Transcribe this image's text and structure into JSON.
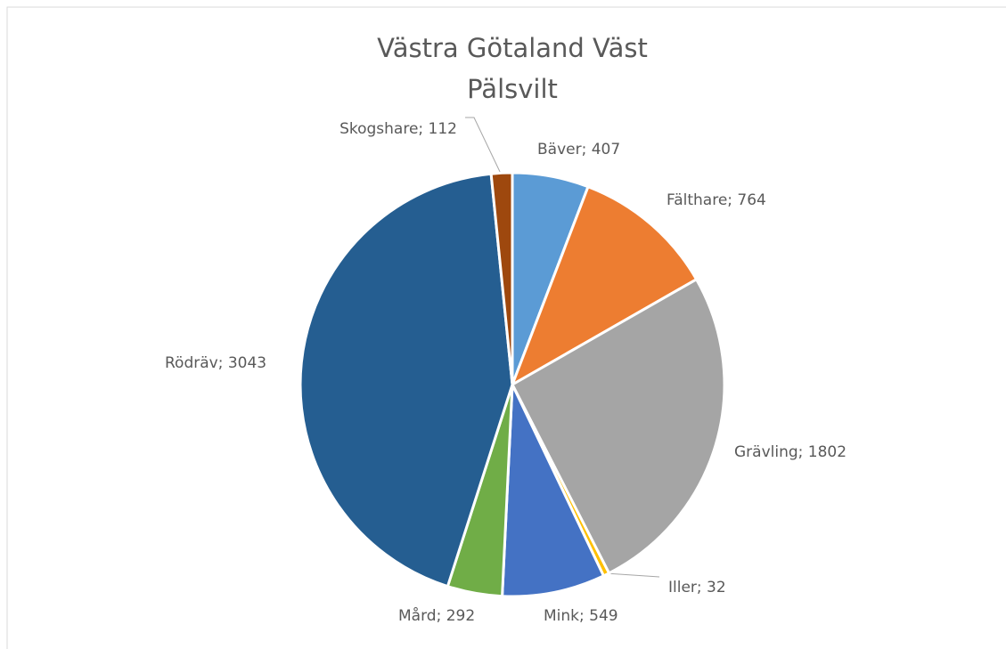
{
  "chart_data": {
    "type": "pie",
    "title": [
      "Västra Götaland Väst",
      "Pälsvilt"
    ],
    "categories": [
      "Bäver",
      "Fälthare",
      "Grävling",
      "Iller",
      "Mink",
      "Mård",
      "Rödräv",
      "Skogshare"
    ],
    "values": [
      407,
      764,
      1802,
      32,
      549,
      292,
      3043,
      112
    ],
    "value_labels": [
      "Bäver; 407",
      "Fälthare; 764",
      "Grävling; 1802",
      "Iller; 32",
      "Mink; 549",
      "Mård; 292",
      "Rödräv; 3043",
      "Skogshare; 112"
    ],
    "colors": [
      "#5b9bd5",
      "#ed7d31",
      "#a5a5a5",
      "#ffc000",
      "#4472c4",
      "#70ad47",
      "#255e91",
      "#9e480e"
    ]
  }
}
